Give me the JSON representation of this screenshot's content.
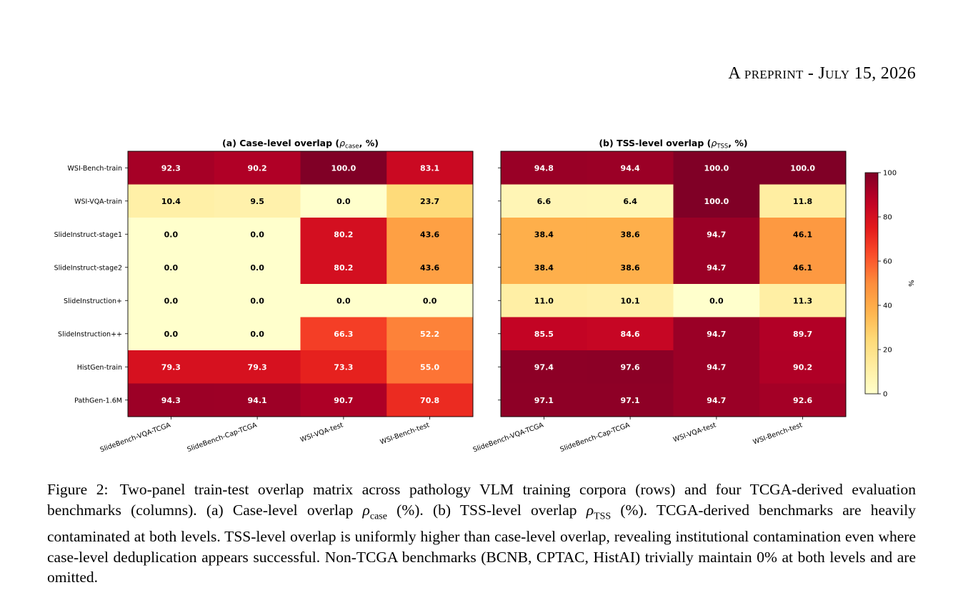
{
  "header": {
    "text": "A preprint - July 15, 2026"
  },
  "figure": {
    "colorbar": {
      "label": "%",
      "ticks": [
        "0",
        "20",
        "40",
        "60",
        "80",
        "100"
      ]
    }
  },
  "chart_data": [
    {
      "type": "heatmap",
      "title": "(a) Case-level overlap (ρcase, %)",
      "title_main": "(a) Case-level overlap (",
      "title_symbol": "ρ",
      "title_sub": "case",
      "title_end": ", %)",
      "rows": [
        "WSI-Bench-train",
        "WSI-VQA-train",
        "SlideInstruct-stage1",
        "SlideInstruct-stage2",
        "SlideInstruction+",
        "SlideInstruction++",
        "HistGen-train",
        "PathGen-1.6M"
      ],
      "columns": [
        "SlideBench-VQA-TCGA",
        "SlideBench-Cap-TCGA",
        "WSI-VQA-test",
        "WSI-Bench-test"
      ],
      "values": [
        [
          92.3,
          90.2,
          100.0,
          83.1
        ],
        [
          10.4,
          9.5,
          0.0,
          23.7
        ],
        [
          0.0,
          0.0,
          80.2,
          43.6
        ],
        [
          0.0,
          0.0,
          80.2,
          43.6
        ],
        [
          0.0,
          0.0,
          0.0,
          0.0
        ],
        [
          0.0,
          0.0,
          66.3,
          52.2
        ],
        [
          79.3,
          79.3,
          73.3,
          55.0
        ],
        [
          94.3,
          94.1,
          90.7,
          70.8
        ]
      ],
      "colormap": "YlOrRd",
      "vmin": 0,
      "vmax": 100
    },
    {
      "type": "heatmap",
      "title": "(b) TSS-level overlap (ρTSS, %)",
      "title_main": "(b) TSS-level overlap (",
      "title_symbol": "ρ",
      "title_sub": "TSS",
      "title_end": ", %)",
      "rows": [
        "WSI-Bench-train",
        "WSI-VQA-train",
        "SlideInstruct-stage1",
        "SlideInstruct-stage2",
        "SlideInstruction+",
        "SlideInstruction++",
        "HistGen-train",
        "PathGen-1.6M"
      ],
      "columns": [
        "SlideBench-VQA-TCGA",
        "SlideBench-Cap-TCGA",
        "WSI-VQA-test",
        "WSI-Bench-test"
      ],
      "values": [
        [
          94.8,
          94.4,
          100.0,
          100.0
        ],
        [
          6.6,
          6.4,
          100.0,
          11.8
        ],
        [
          38.4,
          38.6,
          94.7,
          46.1
        ],
        [
          38.4,
          38.6,
          94.7,
          46.1
        ],
        [
          11.0,
          10.1,
          0.0,
          11.3
        ],
        [
          85.5,
          84.6,
          94.7,
          89.7
        ],
        [
          97.4,
          97.6,
          94.7,
          90.2
        ],
        [
          97.1,
          97.1,
          94.7,
          92.6
        ]
      ],
      "colormap": "YlOrRd",
      "vmin": 0,
      "vmax": 100
    }
  ],
  "caption": {
    "label": "Figure 2:",
    "p1": "Two-panel train-test overlap matrix across pathology VLM training corpora (rows) and four TCGA-derived evaluation benchmarks (columns). (a) Case-level overlap ",
    "rho1": "ρ",
    "sub1": "case",
    "p2": " (%). (b) TSS-level overlap ",
    "rho2": "ρ",
    "sub2": "TSS",
    "p3": " (%). TCGA-derived benchmarks are heavily contaminated at both levels. TSS-level overlap is uniformly higher than case-level overlap, revealing institutional contamination even where case-level deduplication appears successful. Non-TCGA benchmarks (BCNB, CPTAC, HistAI) trivially maintain ",
    "zero": "0%",
    "p4": " at both levels and are omitted."
  }
}
